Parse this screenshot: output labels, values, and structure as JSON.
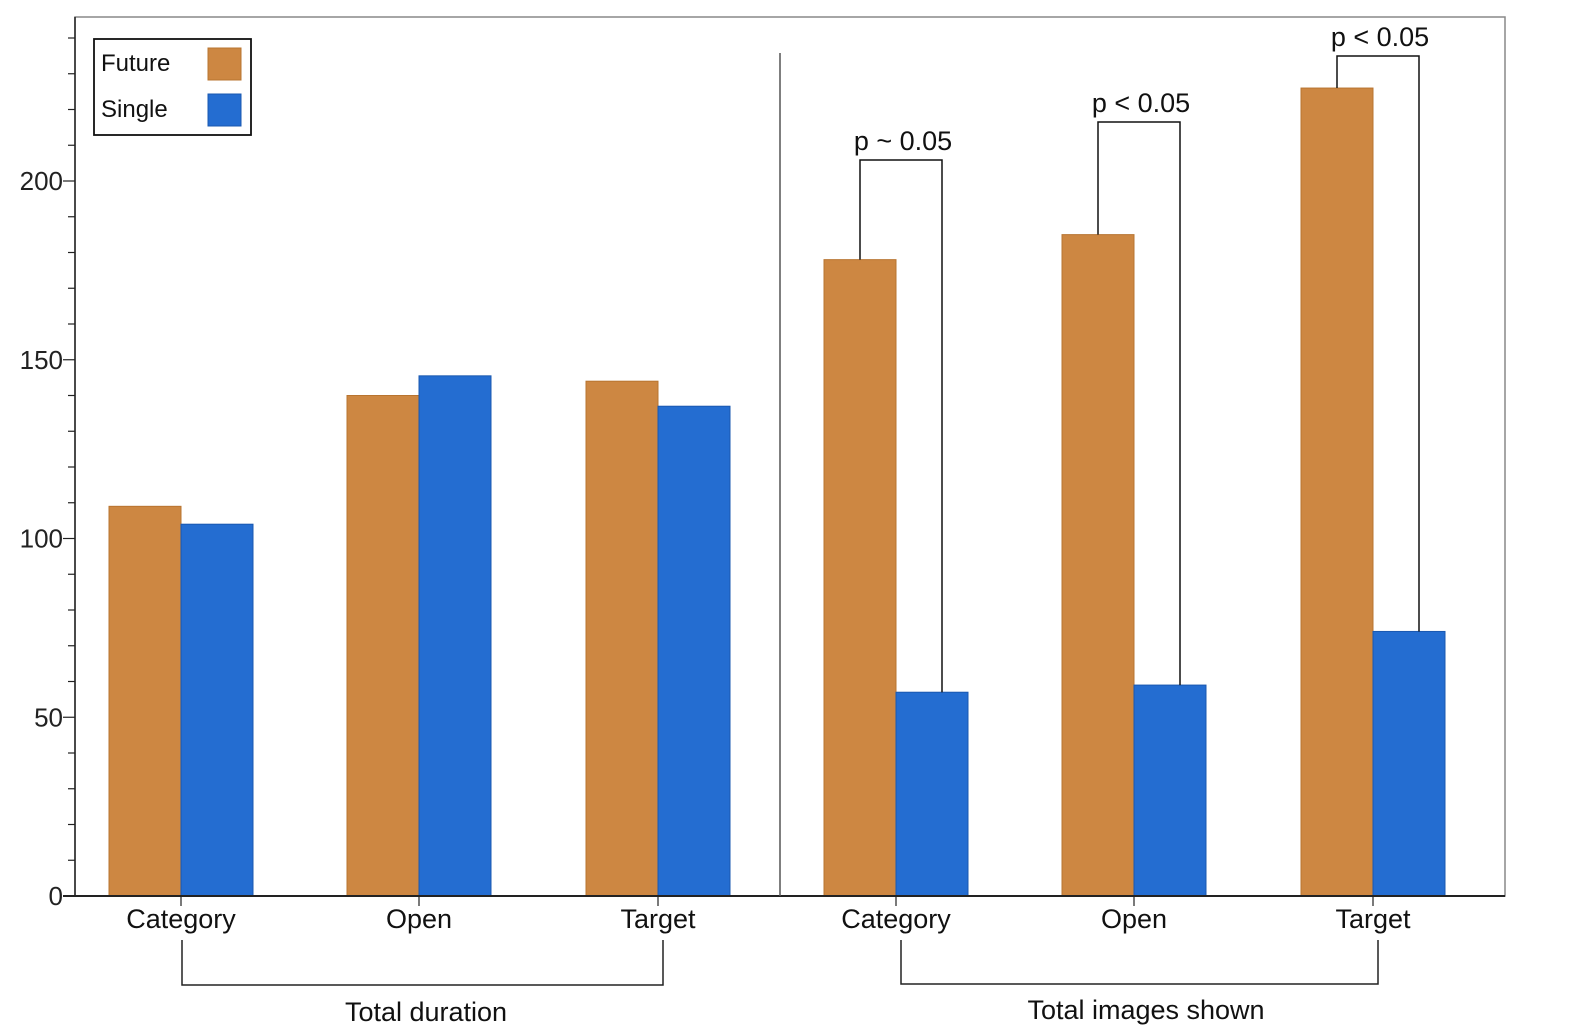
{
  "chart_data": {
    "type": "bar",
    "title": "",
    "xlabel": "",
    "ylabel": "",
    "ylim": [
      0,
      245
    ],
    "yticks": [
      0,
      50,
      100,
      150,
      200
    ],
    "categories": [
      "Category",
      "Open",
      "Target",
      "Category",
      "Open",
      "Target"
    ],
    "groups": [
      {
        "label": "Total duration",
        "category_indices": [
          0,
          1,
          2
        ]
      },
      {
        "label": "Total images shown",
        "category_indices": [
          3,
          4,
          5
        ]
      }
    ],
    "series": [
      {
        "name": "Future",
        "color": "#CD8742",
        "values": [
          109,
          140,
          144,
          178,
          185,
          226
        ]
      },
      {
        "name": "Single",
        "color": "#246DD1",
        "values": [
          104,
          145.5,
          137,
          57,
          59,
          74
        ]
      }
    ],
    "significance": [
      {
        "category_index": 3,
        "label": "p ~ 0.05"
      },
      {
        "category_index": 4,
        "label": "p < 0.05"
      },
      {
        "category_index": 5,
        "label": "p < 0.05"
      }
    ],
    "legend": {
      "position": "top-left"
    },
    "grid": false
  }
}
